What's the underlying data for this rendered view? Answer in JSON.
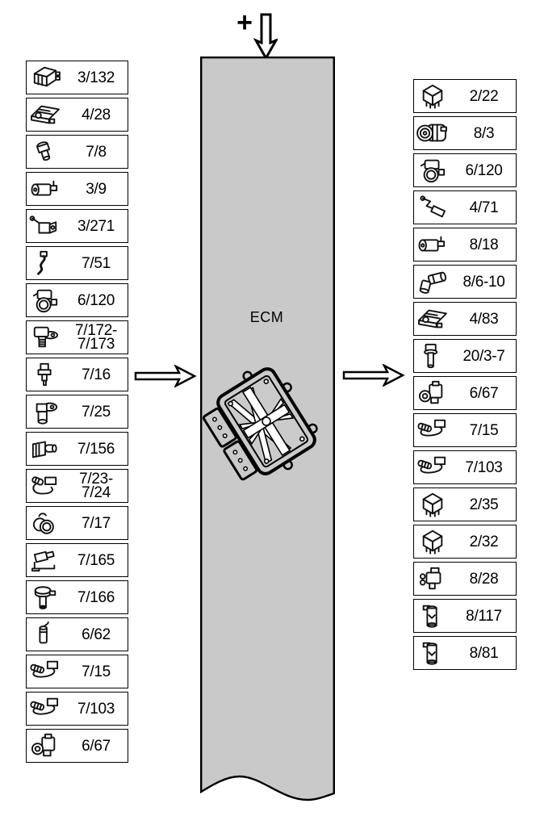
{
  "diagram": {
    "title": "ECM",
    "power_symbol": "+",
    "arrows": {
      "top": "down-arrow-into-harness",
      "left": "flow-from-left-components",
      "right": "flow-to-right-components"
    },
    "colors": {
      "band_fill": "#c9c9c9",
      "line": "#000000",
      "box_background": "#ffffff",
      "text": "#000000"
    }
  },
  "left_column": {
    "items": [
      {
        "ref": "3/132",
        "icon": "control-module-icon"
      },
      {
        "ref": "4/28",
        "icon": "actuator-module-icon"
      },
      {
        "ref": "7/8",
        "icon": "pressure-sensor-icon"
      },
      {
        "ref": "3/9",
        "icon": "pump-icon"
      },
      {
        "ref": "3/271",
        "icon": "switch-icon"
      },
      {
        "ref": "7/51",
        "icon": "wire-pigtail-icon"
      },
      {
        "ref": "6/120",
        "icon": "throttle-body-icon"
      },
      {
        "ref": "7/172-\n7/173",
        "icon": "flange-sensor-icon"
      },
      {
        "ref": "7/16",
        "icon": "temp-sensor-icon"
      },
      {
        "ref": "7/25",
        "icon": "cam-sensor-icon"
      },
      {
        "ref": "7/156",
        "icon": "map-sensor-icon"
      },
      {
        "ref": "7/23-\n7/24",
        "icon": "cable-harness-icon"
      },
      {
        "ref": "7/17",
        "icon": "round-sensor-icon"
      },
      {
        "ref": "7/165",
        "icon": "bracket-sensor-icon"
      },
      {
        "ref": "7/166",
        "icon": "level-sensor-icon"
      },
      {
        "ref": "6/62",
        "icon": "cylinder-wire-icon"
      },
      {
        "ref": "7/15",
        "icon": "oxygen-sensor-icon"
      },
      {
        "ref": "7/103",
        "icon": "oxygen-sensor-icon"
      },
      {
        "ref": "6/67",
        "icon": "solenoid-valve-icon"
      }
    ]
  },
  "right_column": {
    "items": [
      {
        "ref": "2/22",
        "icon": "relay-icon"
      },
      {
        "ref": "8/3",
        "icon": "compressor-icon"
      },
      {
        "ref": "6/120",
        "icon": "throttle-body-icon"
      },
      {
        "ref": "4/71",
        "icon": "lever-switch-icon"
      },
      {
        "ref": "8/18",
        "icon": "pump-icon"
      },
      {
        "ref": "8/6-10",
        "icon": "tee-valve-icon"
      },
      {
        "ref": "4/83",
        "icon": "actuator-module-icon"
      },
      {
        "ref": "20/3-7",
        "icon": "ignition-coil-icon"
      },
      {
        "ref": "6/67",
        "icon": "solenoid-valve-icon"
      },
      {
        "ref": "7/15",
        "icon": "oxygen-sensor-icon"
      },
      {
        "ref": "7/103",
        "icon": "oxygen-sensor-icon"
      },
      {
        "ref": "2/35",
        "icon": "relay-icon"
      },
      {
        "ref": "2/32",
        "icon": "relay-icon"
      },
      {
        "ref": "8/28",
        "icon": "valve-block-icon"
      },
      {
        "ref": "8/117",
        "icon": "cylinder-component-icon"
      },
      {
        "ref": "8/81",
        "icon": "cylinder-component-icon"
      }
    ]
  }
}
